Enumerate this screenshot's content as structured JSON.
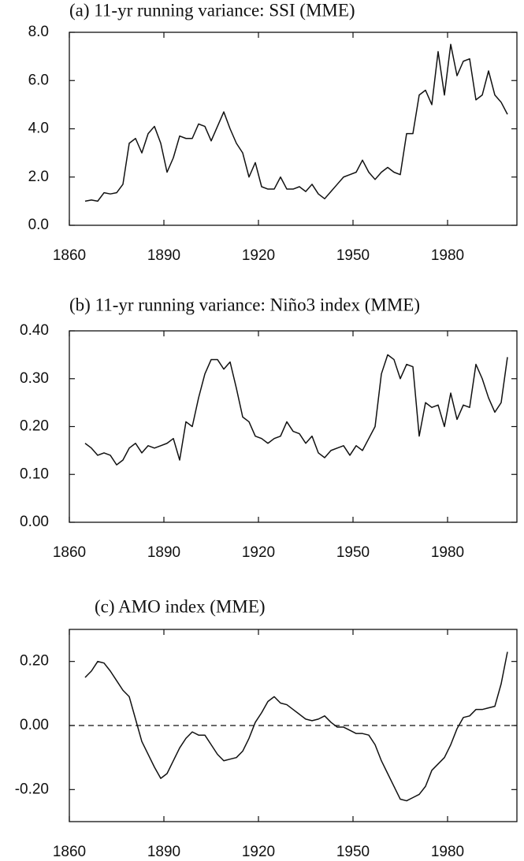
{
  "chart_data": [
    {
      "type": "line",
      "title": "(a) 11-yr running variance: SSI (MME)",
      "x": [
        1865,
        1867,
        1869,
        1871,
        1873,
        1875,
        1877,
        1879,
        1881,
        1883,
        1885,
        1887,
        1889,
        1891,
        1893,
        1895,
        1897,
        1899,
        1901,
        1903,
        1905,
        1907,
        1909,
        1911,
        1913,
        1915,
        1917,
        1919,
        1921,
        1923,
        1925,
        1927,
        1929,
        1931,
        1933,
        1935,
        1937,
        1939,
        1941,
        1943,
        1945,
        1947,
        1949,
        1951,
        1953,
        1955,
        1957,
        1959,
        1961,
        1963,
        1965,
        1967,
        1969,
        1971,
        1973,
        1975,
        1977,
        1979,
        1981,
        1983,
        1985,
        1987,
        1989,
        1991,
        1993,
        1995,
        1997,
        1999
      ],
      "values": [
        1.0,
        1.05,
        1.0,
        1.35,
        1.3,
        1.35,
        1.7,
        3.4,
        3.6,
        3.0,
        3.8,
        4.1,
        3.4,
        2.2,
        2.8,
        3.7,
        3.6,
        3.6,
        4.2,
        4.1,
        3.5,
        4.1,
        4.7,
        4.0,
        3.4,
        3.0,
        2.0,
        2.6,
        1.6,
        1.5,
        1.5,
        2.0,
        1.5,
        1.5,
        1.6,
        1.4,
        1.7,
        1.3,
        1.1,
        1.4,
        1.7,
        2.0,
        2.1,
        2.2,
        2.7,
        2.2,
        1.9,
        2.2,
        2.4,
        2.2,
        2.1,
        3.8,
        3.8,
        5.4,
        5.6,
        5.0,
        7.2,
        5.4,
        7.5,
        6.2,
        6.8,
        6.9,
        5.2,
        5.4,
        6.4,
        5.4,
        5.1,
        4.6
      ],
      "color": "#111111",
      "xlim": [
        1860,
        2002
      ],
      "xticks": [
        1860,
        1890,
        1920,
        1950,
        1980
      ],
      "ylim": [
        0,
        8
      ],
      "yticks": [
        {
          "value": 0,
          "label": "0.0"
        },
        {
          "value": 2,
          "label": "2.0"
        },
        {
          "value": 4,
          "label": "4.0"
        },
        {
          "value": 6,
          "label": "6.0"
        },
        {
          "value": 8,
          "label": "8.0"
        }
      ],
      "grid": false
    },
    {
      "type": "line",
      "title": "(b) 11-yr running variance: Niño3 index (MME)",
      "x": [
        1865,
        1867,
        1869,
        1871,
        1873,
        1875,
        1877,
        1879,
        1881,
        1883,
        1885,
        1887,
        1889,
        1891,
        1893,
        1895,
        1897,
        1899,
        1901,
        1903,
        1905,
        1907,
        1909,
        1911,
        1913,
        1915,
        1917,
        1919,
        1921,
        1923,
        1925,
        1927,
        1929,
        1931,
        1933,
        1935,
        1937,
        1939,
        1941,
        1943,
        1945,
        1947,
        1949,
        1951,
        1953,
        1955,
        1957,
        1959,
        1961,
        1963,
        1965,
        1967,
        1969,
        1971,
        1973,
        1975,
        1977,
        1979,
        1981,
        1983,
        1985,
        1987,
        1989,
        1991,
        1993,
        1995,
        1997,
        1999
      ],
      "values": [
        0.165,
        0.155,
        0.14,
        0.145,
        0.14,
        0.12,
        0.13,
        0.155,
        0.165,
        0.145,
        0.16,
        0.155,
        0.16,
        0.165,
        0.175,
        0.13,
        0.21,
        0.2,
        0.26,
        0.31,
        0.34,
        0.34,
        0.32,
        0.335,
        0.28,
        0.22,
        0.21,
        0.18,
        0.175,
        0.165,
        0.175,
        0.18,
        0.21,
        0.19,
        0.185,
        0.165,
        0.18,
        0.145,
        0.135,
        0.15,
        0.155,
        0.16,
        0.14,
        0.16,
        0.15,
        0.175,
        0.2,
        0.31,
        0.35,
        0.34,
        0.3,
        0.33,
        0.325,
        0.18,
        0.25,
        0.24,
        0.245,
        0.2,
        0.27,
        0.215,
        0.245,
        0.24,
        0.33,
        0.3,
        0.26,
        0.23,
        0.25,
        0.345
      ],
      "color": "#111111",
      "xlim": [
        1860,
        2002
      ],
      "xticks": [
        1860,
        1890,
        1920,
        1950,
        1980
      ],
      "ylim": [
        0,
        0.4
      ],
      "yticks": [
        {
          "value": 0,
          "label": "0.00"
        },
        {
          "value": 0.1,
          "label": "0.10"
        },
        {
          "value": 0.2,
          "label": "0.20"
        },
        {
          "value": 0.3,
          "label": "0.30"
        },
        {
          "value": 0.4,
          "label": "0.40"
        }
      ],
      "grid": false
    },
    {
      "type": "line",
      "title": "(c) AMO index (MME)",
      "x": [
        1865,
        1867,
        1869,
        1871,
        1873,
        1875,
        1877,
        1879,
        1881,
        1883,
        1885,
        1887,
        1889,
        1891,
        1893,
        1895,
        1897,
        1899,
        1901,
        1903,
        1905,
        1907,
        1909,
        1911,
        1913,
        1915,
        1917,
        1919,
        1921,
        1923,
        1925,
        1927,
        1929,
        1931,
        1933,
        1935,
        1937,
        1939,
        1941,
        1943,
        1945,
        1947,
        1949,
        1951,
        1953,
        1955,
        1957,
        1959,
        1961,
        1963,
        1965,
        1967,
        1969,
        1971,
        1973,
        1975,
        1977,
        1979,
        1981,
        1983,
        1985,
        1987,
        1989,
        1991,
        1993,
        1995,
        1997,
        1999
      ],
      "values": [
        0.15,
        0.17,
        0.2,
        0.195,
        0.17,
        0.14,
        0.11,
        0.09,
        0.02,
        -0.05,
        -0.09,
        -0.13,
        -0.165,
        -0.15,
        -0.11,
        -0.07,
        -0.04,
        -0.02,
        -0.03,
        -0.03,
        -0.06,
        -0.09,
        -0.11,
        -0.105,
        -0.1,
        -0.08,
        -0.04,
        0.01,
        0.04,
        0.075,
        0.09,
        0.07,
        0.065,
        0.05,
        0.035,
        0.02,
        0.015,
        0.02,
        0.03,
        0.01,
        -0.005,
        -0.005,
        -0.015,
        -0.025,
        -0.025,
        -0.03,
        -0.06,
        -0.11,
        -0.15,
        -0.19,
        -0.23,
        -0.235,
        -0.225,
        -0.215,
        -0.19,
        -0.14,
        -0.12,
        -0.1,
        -0.06,
        -0.01,
        0.025,
        0.03,
        0.05,
        0.05,
        0.055,
        0.06,
        0.13,
        0.23
      ],
      "color": "#111111",
      "xlim": [
        1860,
        2002
      ],
      "xticks": [
        1860,
        1890,
        1920,
        1950,
        1980
      ],
      "ylim": [
        -0.3,
        0.3
      ],
      "yticks": [
        {
          "value": -0.2,
          "label": "-0.20"
        },
        {
          "value": 0,
          "label": "0.00"
        },
        {
          "value": 0.2,
          "label": "0.20"
        }
      ],
      "reference_line": 0,
      "grid": false
    }
  ]
}
